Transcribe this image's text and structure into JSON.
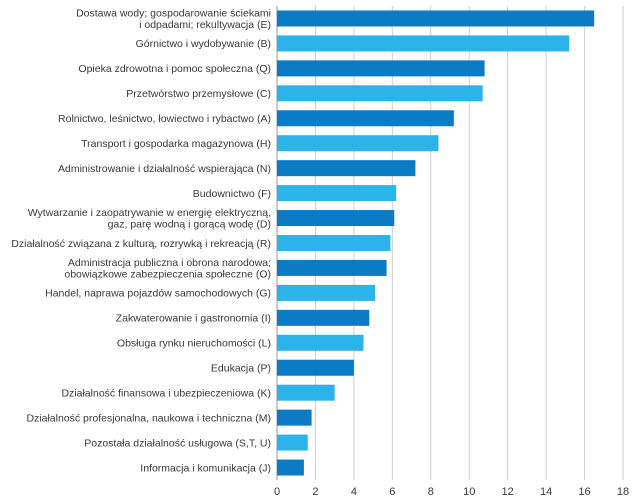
{
  "chart_data": {
    "type": "bar",
    "orientation": "horizontal",
    "categories": [
      [
        "Dostawa wody; gospodarowanie ściekami",
        "i odpadami; rekultywacja (E)"
      ],
      [
        "Górnictwo i wydobywanie (B)"
      ],
      [
        "Opieka zdrowotna i pomoc społeczna (Q)"
      ],
      [
        "Przetwórstwo przemysłowe (C)"
      ],
      [
        "Rolnictwo, leśnictwo, łowiectwo i rybactwo (A)"
      ],
      [
        "Transport i gospodarka magazynowa (H)"
      ],
      [
        "Administrowanie i działalność wspierająca (N)"
      ],
      [
        "Budownictwo (F)"
      ],
      [
        "Wytwarzanie i zaopatrywanie w energię elektryczną,",
        "gaz, parę wodną i gorącą wodę (D)"
      ],
      [
        "Działalność związana z kulturą, rozrywką i rekreacją (R)"
      ],
      [
        "Administracja publiczna i obrona narodowa;",
        "obowiązkowe zabezpieczenia społeczne (O)"
      ],
      [
        "Handel, naprawa pojazdów samochodowych (G)"
      ],
      [
        "Zakwaterowanie i gastronomia (I)"
      ],
      [
        "Obsługa rynku nieruchomości (L)"
      ],
      [
        "Edukacja (P)"
      ],
      [
        "Działalność finansowa i ubezpieczeniowa (K)"
      ],
      [
        "Działalność profesjonalna, naukowa i techniczna (M)"
      ],
      [
        "Pozostała działalność usługowa (S,T, U)"
      ],
      [
        "Informacja i komunikacja (J)"
      ]
    ],
    "values": [
      16.5,
      15.2,
      10.8,
      10.7,
      9.2,
      8.4,
      7.2,
      6.2,
      6.1,
      5.9,
      5.7,
      5.1,
      4.8,
      4.5,
      4.0,
      3.0,
      1.8,
      1.6,
      1.4
    ],
    "xlim": [
      0,
      18
    ],
    "xticks": [
      0,
      2,
      4,
      6,
      8,
      10,
      12,
      14,
      16,
      18
    ],
    "grid": true,
    "colors": {
      "dark": "#0b7bc6",
      "light": "#2bb3ea"
    }
  }
}
